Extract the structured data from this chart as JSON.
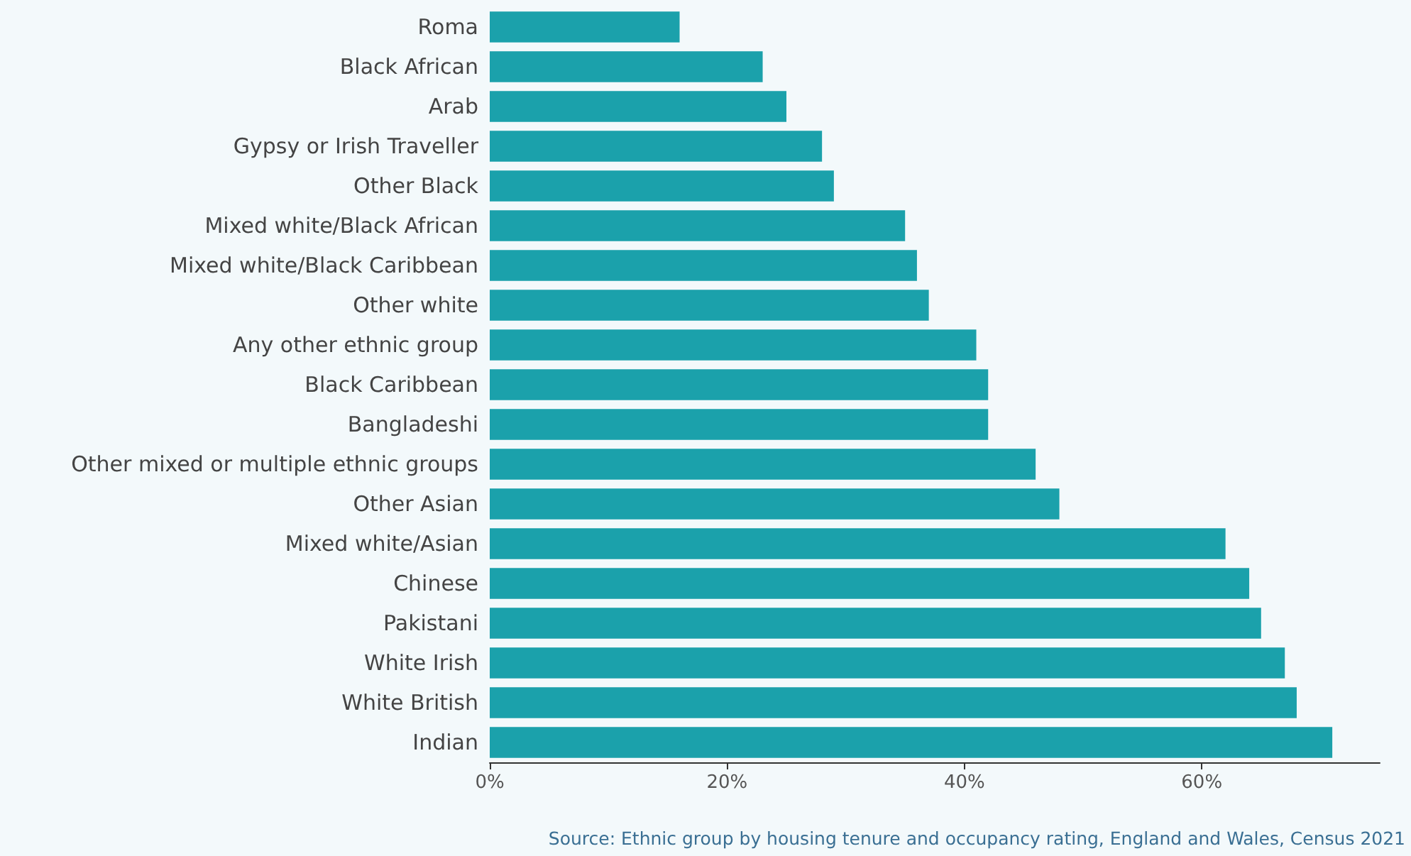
{
  "chart_data": {
    "type": "bar",
    "orientation": "horizontal",
    "categories": [
      "Roma",
      "Black African",
      "Arab",
      "Gypsy or Irish Traveller",
      "Other Black",
      "Mixed white/Black African",
      "Mixed white/Black Caribbean",
      "Other white",
      "Any other ethnic group",
      "Black Caribbean",
      "Bangladeshi",
      "Other mixed or multiple ethnic groups",
      "Other Asian",
      "Mixed white/Asian",
      "Chinese",
      "Pakistani",
      "White Irish",
      "White British",
      "Indian"
    ],
    "values": [
      16,
      23,
      25,
      28,
      29,
      35,
      36,
      37,
      41,
      42,
      42,
      46,
      48,
      62,
      64,
      65,
      67,
      68,
      71
    ],
    "color": "#1ba1ab",
    "xlim": [
      0,
      75
    ],
    "xticks": [
      {
        "value": 0,
        "label": "0%"
      },
      {
        "value": 20,
        "label": "20%"
      },
      {
        "value": 40,
        "label": "40%"
      },
      {
        "value": 60,
        "label": "60%"
      }
    ],
    "grid": false,
    "annotations": [
      "Source: Ethnic group by housing tenure and occupancy rating, England and Wales, Census 2021"
    ]
  }
}
